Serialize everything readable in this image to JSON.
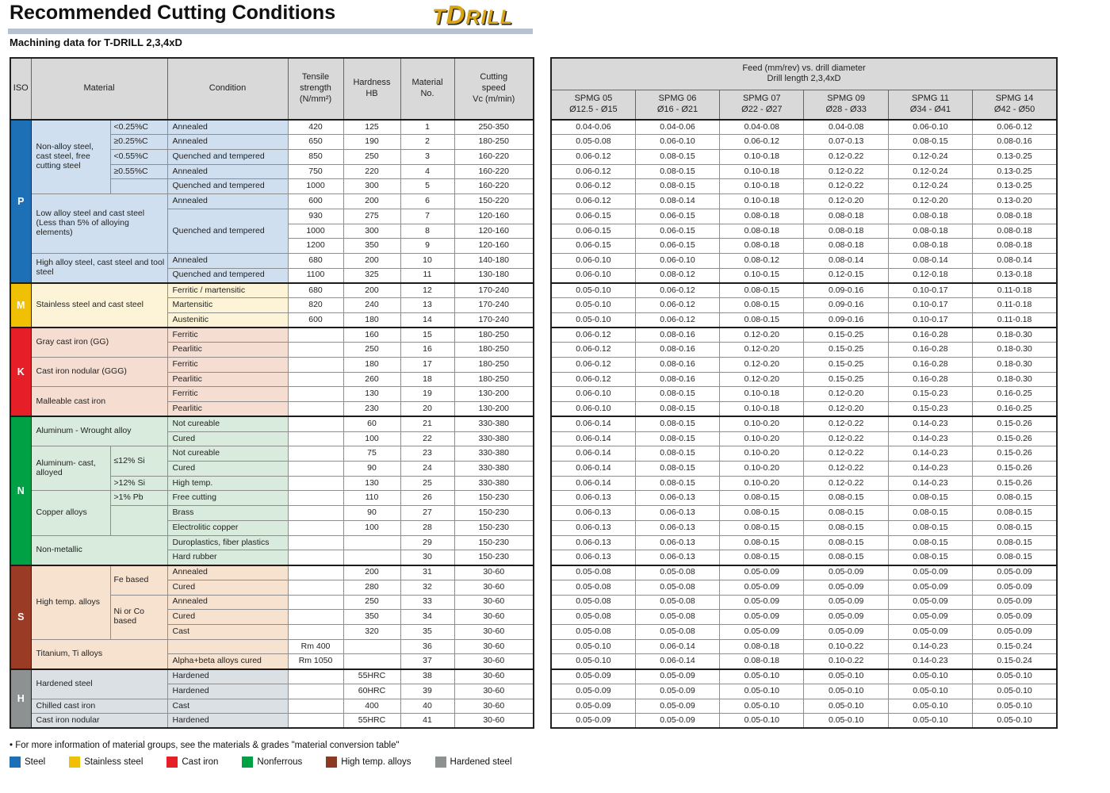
{
  "page": {
    "title": "Recommended Cutting Conditions",
    "subtitle": "Machining data for T-DRILL 2,3,4xD",
    "logo": {
      "part1": "T",
      "part2": "D",
      "part3": "RILL"
    },
    "footnote": "• For more information of material groups, see the materials & grades \"material conversion table\""
  },
  "cutting_table": {
    "headers": [
      "ISO",
      "Material",
      "Condition",
      "Tensile\nstrength\n(N/mm²)",
      "Hardness\nHB",
      "Material\nNo.",
      "Cutting\nspeed\nVc (m/min)"
    ],
    "iso_groups": [
      {
        "letter": "P",
        "from": 1,
        "count": 11,
        "color": "#1d70b5",
        "bg": "#cfdfef"
      },
      {
        "letter": "M",
        "from": 12,
        "count": 3,
        "color": "#f0c004",
        "bg": "#fdf4d7"
      },
      {
        "letter": "K",
        "from": 15,
        "count": 6,
        "color": "#e61e28",
        "bg": "#f6ddd2"
      },
      {
        "letter": "N",
        "from": 21,
        "count": 10,
        "color": "#00a045",
        "bg": "#d9ebdc"
      },
      {
        "letter": "S",
        "from": 31,
        "count": 7,
        "color": "#9a3b26",
        "bg": "#f7e2d0"
      },
      {
        "letter": "H",
        "from": 38,
        "count": 4,
        "color": "#8d9192",
        "bg": "#dbe0e5"
      }
    ],
    "material_groups": [
      {
        "label": "Non-alloy steel, cast steel, free cutting steel",
        "from": 1,
        "count": 5,
        "split": true
      },
      {
        "label": "Low alloy steel and cast steel (Less than 5% of alloying elements)",
        "from": 6,
        "count": 4
      },
      {
        "label": "High alloy steel, cast steel and tool steel",
        "from": 10,
        "count": 2
      },
      {
        "label": "Stainless steel and cast steel",
        "from": 12,
        "count": 3
      },
      {
        "label": "Gray cast iron (GG)",
        "from": 15,
        "count": 2
      },
      {
        "label": "Cast iron nodular (GGG)",
        "from": 17,
        "count": 2
      },
      {
        "label": "Malleable cast iron",
        "from": 19,
        "count": 2
      },
      {
        "label": "Aluminum - Wrought alloy",
        "from": 21,
        "count": 2
      },
      {
        "label": "Aluminum- cast, alloyed",
        "from": 23,
        "count": 3,
        "split": true
      },
      {
        "label": "Copper alloys",
        "from": 26,
        "count": 3,
        "split": true
      },
      {
        "label": "Non-metallic",
        "from": 29,
        "count": 2
      },
      {
        "label": "High temp. alloys",
        "from": 31,
        "count": 5,
        "split": true
      },
      {
        "label": "Titanium, Ti alloys",
        "from": 36,
        "count": 2
      },
      {
        "label": "Hardened steel",
        "from": 38,
        "count": 2
      },
      {
        "label": "Chilled cast iron",
        "from": 40,
        "count": 1
      },
      {
        "label": "Cast iron nodular",
        "from": 41,
        "count": 1
      }
    ],
    "material_subgroups": [
      {
        "label": "<0.25%C",
        "from": 1,
        "count": 1
      },
      {
        "label": "≥0.25%C",
        "from": 2,
        "count": 1
      },
      {
        "label": "<0.55%C",
        "from": 3,
        "count": 1
      },
      {
        "label": "≥0.55%C",
        "from": 4,
        "count": 1
      },
      {
        "label": "",
        "from": 5,
        "count": 1
      },
      {
        "label": "≤12% Si",
        "from": 23,
        "count": 2
      },
      {
        "label": ">12% Si",
        "from": 25,
        "count": 1
      },
      {
        "label": ">1% Pb",
        "from": 26,
        "count": 1
      },
      {
        "label": "",
        "from": 27,
        "count": 2
      },
      {
        "label": "Fe based",
        "from": 31,
        "count": 2
      },
      {
        "label": "Ni or Co based",
        "from": 33,
        "count": 3
      }
    ],
    "condition_merges": [
      {
        "from": 7,
        "count": 3
      }
    ],
    "rows": [
      {
        "no": "1",
        "condition": "Annealed",
        "tensile": "420",
        "hb": "125",
        "vc": "250-350"
      },
      {
        "no": "2",
        "condition": "Annealed",
        "tensile": "650",
        "hb": "190",
        "vc": "180-250"
      },
      {
        "no": "3",
        "condition": "Quenched and tempered",
        "tensile": "850",
        "hb": "250",
        "vc": "160-220"
      },
      {
        "no": "4",
        "condition": "Annealed",
        "tensile": "750",
        "hb": "220",
        "vc": "160-220"
      },
      {
        "no": "5",
        "condition": "Quenched and tempered",
        "tensile": "1000",
        "hb": "300",
        "vc": "160-220"
      },
      {
        "no": "6",
        "condition": "Annealed",
        "tensile": "600",
        "hb": "200",
        "vc": "150-220"
      },
      {
        "no": "7",
        "condition": "Quenched and tempered",
        "tensile": "930",
        "hb": "275",
        "vc": "120-160"
      },
      {
        "no": "8",
        "condition": "",
        "tensile": "1000",
        "hb": "300",
        "vc": "120-160"
      },
      {
        "no": "9",
        "condition": "",
        "tensile": "1200",
        "hb": "350",
        "vc": "120-160"
      },
      {
        "no": "10",
        "condition": "Annealed",
        "tensile": "680",
        "hb": "200",
        "vc": "140-180"
      },
      {
        "no": "11",
        "condition": "Quenched and tempered",
        "tensile": "1100",
        "hb": "325",
        "vc": "130-180"
      },
      {
        "no": "12",
        "condition": "Ferritic / martensitic",
        "tensile": "680",
        "hb": "200",
        "vc": "170-240"
      },
      {
        "no": "13",
        "condition": "Martensitic",
        "tensile": "820",
        "hb": "240",
        "vc": "170-240"
      },
      {
        "no": "14",
        "condition": "Austenitic",
        "tensile": "600",
        "hb": "180",
        "vc": "170-240"
      },
      {
        "no": "15",
        "condition": "Ferritic",
        "tensile": "",
        "hb": "160",
        "vc": "180-250"
      },
      {
        "no": "16",
        "condition": "Pearlitic",
        "tensile": "",
        "hb": "250",
        "vc": "180-250"
      },
      {
        "no": "17",
        "condition": "Ferritic",
        "tensile": "",
        "hb": "180",
        "vc": "180-250"
      },
      {
        "no": "18",
        "condition": "Pearlitic",
        "tensile": "",
        "hb": "260",
        "vc": "180-250"
      },
      {
        "no": "19",
        "condition": "Ferritic",
        "tensile": "",
        "hb": "130",
        "vc": "130-200"
      },
      {
        "no": "20",
        "condition": "Pearlitic",
        "tensile": "",
        "hb": "230",
        "vc": "130-200"
      },
      {
        "no": "21",
        "condition": "Not cureable",
        "tensile": "",
        "hb": "60",
        "vc": "330-380"
      },
      {
        "no": "22",
        "condition": "Cured",
        "tensile": "",
        "hb": "100",
        "vc": "330-380"
      },
      {
        "no": "23",
        "condition": "Not cureable",
        "tensile": "",
        "hb": "75",
        "vc": "330-380"
      },
      {
        "no": "24",
        "condition": "Cured",
        "tensile": "",
        "hb": "90",
        "vc": "330-380"
      },
      {
        "no": "25",
        "condition": "High temp.",
        "tensile": "",
        "hb": "130",
        "vc": "330-380"
      },
      {
        "no": "26",
        "condition": "Free cutting",
        "tensile": "",
        "hb": "110",
        "vc": "150-230"
      },
      {
        "no": "27",
        "condition": "Brass",
        "tensile": "",
        "hb": "90",
        "vc": "150-230"
      },
      {
        "no": "28",
        "condition": "Electrolitic copper",
        "tensile": "",
        "hb": "100",
        "vc": "150-230"
      },
      {
        "no": "29",
        "condition": "Duroplastics, fiber plastics",
        "tensile": "",
        "hb": "",
        "vc": "150-230"
      },
      {
        "no": "30",
        "condition": "Hard rubber",
        "tensile": "",
        "hb": "",
        "vc": "150-230"
      },
      {
        "no": "31",
        "condition": "Annealed",
        "tensile": "",
        "hb": "200",
        "vc": "30-60"
      },
      {
        "no": "32",
        "condition": "Cured",
        "tensile": "",
        "hb": "280",
        "vc": "30-60"
      },
      {
        "no": "33",
        "condition": "Annealed",
        "tensile": "",
        "hb": "250",
        "vc": "30-60"
      },
      {
        "no": "34",
        "condition": "Cured",
        "tensile": "",
        "hb": "350",
        "vc": "30-60"
      },
      {
        "no": "35",
        "condition": "Cast",
        "tensile": "",
        "hb": "320",
        "vc": "30-60"
      },
      {
        "no": "36",
        "condition": "",
        "tensile": "Rm 400",
        "hb": "",
        "vc": "30-60"
      },
      {
        "no": "37",
        "condition": "Alpha+beta alloys cured",
        "tensile": "Rm 1050",
        "hb": "",
        "vc": "30-60"
      },
      {
        "no": "38",
        "condition": "Hardened",
        "tensile": "",
        "hb": "55HRC",
        "vc": "30-60"
      },
      {
        "no": "39",
        "condition": "Hardened",
        "tensile": "",
        "hb": "60HRC",
        "vc": "30-60"
      },
      {
        "no": "40",
        "condition": "Cast",
        "tensile": "",
        "hb": "400",
        "vc": "30-60"
      },
      {
        "no": "41",
        "condition": "Hardened",
        "tensile": "",
        "hb": "55HRC",
        "vc": "30-60"
      }
    ]
  },
  "feed_table": {
    "header_line1": "Feed (mm/rev) vs. drill diameter",
    "header_line2": "Drill length 2,3,4xD",
    "columns": [
      {
        "name": "SPMG 05",
        "range": "Ø12.5 - Ø15"
      },
      {
        "name": "SPMG 06",
        "range": "Ø16 - Ø21"
      },
      {
        "name": "SPMG 07",
        "range": "Ø22 - Ø27"
      },
      {
        "name": "SPMG 09",
        "range": "Ø28 - Ø33"
      },
      {
        "name": "SPMG 11",
        "range": "Ø34 - Ø41"
      },
      {
        "name": "SPMG 14",
        "range": "Ø42 - Ø50"
      }
    ],
    "rows": [
      [
        "0.04-0.06",
        "0.04-0.06",
        "0.04-0.08",
        "0.04-0.08",
        "0.06-0.10",
        "0.06-0.12"
      ],
      [
        "0.05-0.08",
        "0.06-0.10",
        "0.06-0.12",
        "0.07-0.13",
        "0.08-0.15",
        "0.08-0.16"
      ],
      [
        "0.06-0.12",
        "0.08-0.15",
        "0.10-0.18",
        "0.12-0.22",
        "0.12-0.24",
        "0.13-0.25"
      ],
      [
        "0.06-0.12",
        "0.08-0.15",
        "0.10-0.18",
        "0.12-0.22",
        "0.12-0.24",
        "0.13-0.25"
      ],
      [
        "0.06-0.12",
        "0.08-0.15",
        "0.10-0.18",
        "0.12-0.22",
        "0.12-0.24",
        "0.13-0.25"
      ],
      [
        "0.06-0.12",
        "0.08-0.14",
        "0.10-0.18",
        "0.12-0.20",
        "0.12-0.20",
        "0.13-0.20"
      ],
      [
        "0.06-0.15",
        "0.06-0.15",
        "0.08-0.18",
        "0.08-0.18",
        "0.08-0.18",
        "0.08-0.18"
      ],
      [
        "0.06-0.15",
        "0.06-0.15",
        "0.08-0.18",
        "0.08-0.18",
        "0.08-0.18",
        "0.08-0.18"
      ],
      [
        "0.06-0.15",
        "0.06-0.15",
        "0.08-0.18",
        "0.08-0.18",
        "0.08-0.18",
        "0.08-0.18"
      ],
      [
        "0.06-0.10",
        "0.06-0.10",
        "0.08-0.12",
        "0.08-0.14",
        "0.08-0.14",
        "0.08-0.14"
      ],
      [
        "0.06-0.10",
        "0.08-0.12",
        "0.10-0.15",
        "0.12-0.15",
        "0.12-0.18",
        "0.13-0.18"
      ],
      [
        "0.05-0.10",
        "0.06-0.12",
        "0.08-0.15",
        "0.09-0.16",
        "0.10-0.17",
        "0.11-0.18"
      ],
      [
        "0.05-0.10",
        "0.06-0.12",
        "0.08-0.15",
        "0.09-0.16",
        "0.10-0.17",
        "0.11-0.18"
      ],
      [
        "0.05-0.10",
        "0.06-0.12",
        "0.08-0.15",
        "0.09-0.16",
        "0.10-0.17",
        "0.11-0.18"
      ],
      [
        "0.06-0.12",
        "0.08-0.16",
        "0.12-0.20",
        "0.15-0.25",
        "0.16-0.28",
        "0.18-0.30"
      ],
      [
        "0.06-0.12",
        "0.08-0.16",
        "0.12-0.20",
        "0.15-0.25",
        "0.16-0.28",
        "0.18-0.30"
      ],
      [
        "0.06-0.12",
        "0.08-0.16",
        "0.12-0.20",
        "0.15-0.25",
        "0.16-0.28",
        "0.18-0.30"
      ],
      [
        "0.06-0.12",
        "0.08-0.16",
        "0.12-0.20",
        "0.15-0.25",
        "0.16-0.28",
        "0.18-0.30"
      ],
      [
        "0.06-0.10",
        "0.08-0.15",
        "0.10-0.18",
        "0.12-0.20",
        "0.15-0.23",
        "0.16-0.25"
      ],
      [
        "0.06-0.10",
        "0.08-0.15",
        "0.10-0.18",
        "0.12-0.20",
        "0.15-0.23",
        "0.16-0.25"
      ],
      [
        "0.06-0.14",
        "0.08-0.15",
        "0.10-0.20",
        "0.12-0.22",
        "0.14-0.23",
        "0.15-0.26"
      ],
      [
        "0.06-0.14",
        "0.08-0.15",
        "0.10-0.20",
        "0.12-0.22",
        "0.14-0.23",
        "0.15-0.26"
      ],
      [
        "0.06-0.14",
        "0.08-0.15",
        "0.10-0.20",
        "0.12-0.22",
        "0.14-0.23",
        "0.15-0.26"
      ],
      [
        "0.06-0.14",
        "0.08-0.15",
        "0.10-0.20",
        "0.12-0.22",
        "0.14-0.23",
        "0.15-0.26"
      ],
      [
        "0.06-0.14",
        "0.08-0.15",
        "0.10-0.20",
        "0.12-0.22",
        "0.14-0.23",
        "0.15-0.26"
      ],
      [
        "0.06-0.13",
        "0.06-0.13",
        "0.08-0.15",
        "0.08-0.15",
        "0.08-0.15",
        "0.08-0.15"
      ],
      [
        "0.06-0.13",
        "0.06-0.13",
        "0.08-0.15",
        "0.08-0.15",
        "0.08-0.15",
        "0.08-0.15"
      ],
      [
        "0.06-0.13",
        "0.06-0.13",
        "0.08-0.15",
        "0.08-0.15",
        "0.08-0.15",
        "0.08-0.15"
      ],
      [
        "0.06-0.13",
        "0.06-0.13",
        "0.08-0.15",
        "0.08-0.15",
        "0.08-0.15",
        "0.08-0.15"
      ],
      [
        "0.06-0.13",
        "0.06-0.13",
        "0.08-0.15",
        "0.08-0.15",
        "0.08-0.15",
        "0.08-0.15"
      ],
      [
        "0.05-0.08",
        "0.05-0.08",
        "0.05-0.09",
        "0.05-0.09",
        "0.05-0.09",
        "0.05-0.09"
      ],
      [
        "0.05-0.08",
        "0.05-0.08",
        "0.05-0.09",
        "0.05-0.09",
        "0.05-0.09",
        "0.05-0.09"
      ],
      [
        "0.05-0.08",
        "0.05-0.08",
        "0.05-0.09",
        "0.05-0.09",
        "0.05-0.09",
        "0.05-0.09"
      ],
      [
        "0.05-0.08",
        "0.05-0.08",
        "0.05-0.09",
        "0.05-0.09",
        "0.05-0.09",
        "0.05-0.09"
      ],
      [
        "0.05-0.08",
        "0.05-0.08",
        "0.05-0.09",
        "0.05-0.09",
        "0.05-0.09",
        "0.05-0.09"
      ],
      [
        "0.05-0.10",
        "0.06-0.14",
        "0.08-0.18",
        "0.10-0.22",
        "0.14-0.23",
        "0.15-0.24"
      ],
      [
        "0.05-0.10",
        "0.06-0.14",
        "0.08-0.18",
        "0.10-0.22",
        "0.14-0.23",
        "0.15-0.24"
      ],
      [
        "0.05-0.09",
        "0.05-0.09",
        "0.05-0.10",
        "0.05-0.10",
        "0.05-0.10",
        "0.05-0.10"
      ],
      [
        "0.05-0.09",
        "0.05-0.09",
        "0.05-0.10",
        "0.05-0.10",
        "0.05-0.10",
        "0.05-0.10"
      ],
      [
        "0.05-0.09",
        "0.05-0.09",
        "0.05-0.10",
        "0.05-0.10",
        "0.05-0.10",
        "0.05-0.10"
      ],
      [
        "0.05-0.09",
        "0.05-0.09",
        "0.05-0.10",
        "0.05-0.10",
        "0.05-0.10",
        "0.05-0.10"
      ]
    ]
  },
  "legend": {
    "items": [
      {
        "label": "Steel",
        "color": "#1d70b5"
      },
      {
        "label": "Stainless steel",
        "color": "#f0c004"
      },
      {
        "label": "Cast iron",
        "color": "#e61e28"
      },
      {
        "label": "Nonferrous",
        "color": "#00a045"
      },
      {
        "label": "High temp. alloys",
        "color": "#8a3a22"
      },
      {
        "label": "Hardened steel",
        "color": "#8d9192"
      }
    ]
  }
}
